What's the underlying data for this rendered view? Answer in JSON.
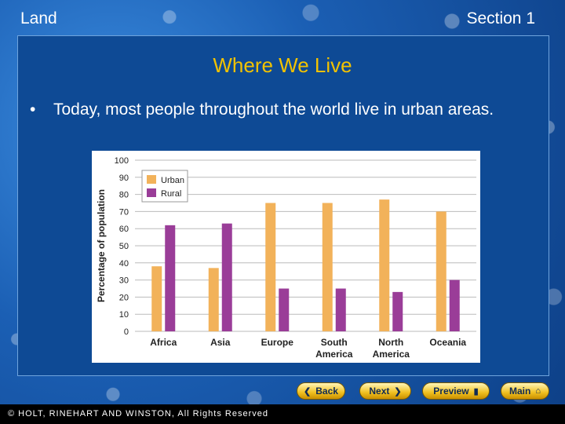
{
  "header": {
    "left": "Land",
    "right": "Section 1"
  },
  "slide": {
    "title": "Where We Live",
    "bullet": "Today, most people throughout the world live in urban areas."
  },
  "nav": {
    "back": "Back",
    "next": "Next",
    "preview": "Preview",
    "main": "Main"
  },
  "footer": {
    "copyright": "© HOLT, RINEHART AND WINSTON, All Rights Reserved"
  },
  "colors": {
    "urban": "#f2b25a",
    "rural": "#9a3d98",
    "title": "#f2c200"
  },
  "chart_data": {
    "type": "bar",
    "ylabel": "Percentage of population",
    "ylim": [
      0,
      100
    ],
    "yticks": [
      0,
      10,
      20,
      30,
      40,
      50,
      60,
      70,
      80,
      90,
      100
    ],
    "categories": [
      [
        "Africa"
      ],
      [
        "Asia"
      ],
      [
        "Europe"
      ],
      [
        "South",
        "America"
      ],
      [
        "North",
        "America"
      ],
      [
        "Oceania"
      ]
    ],
    "series": [
      {
        "name": "Urban",
        "values": [
          38,
          37,
          75,
          75,
          77,
          70
        ]
      },
      {
        "name": "Rural",
        "values": [
          62,
          63,
          25,
          25,
          23,
          30
        ]
      }
    ],
    "legend": "top-left",
    "grid": true
  }
}
